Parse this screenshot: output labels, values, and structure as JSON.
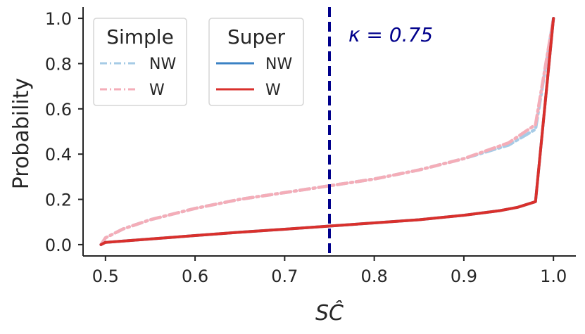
{
  "chart_data": {
    "type": "line",
    "xlabel": "SĈ",
    "ylabel": "Probability",
    "xlim": [
      0.475,
      1.025
    ],
    "ylim": [
      -0.05,
      1.05
    ],
    "x_ticks": [
      "0.5",
      "0.6",
      "0.7",
      "0.8",
      "0.9",
      "1.0"
    ],
    "y_ticks": [
      "0.0",
      "0.2",
      "0.4",
      "0.6",
      "0.8",
      "1.0"
    ],
    "grid": false,
    "threshold": {
      "x": 0.75,
      "label": "κ = 0.75",
      "color": "#00008b"
    },
    "legends": [
      {
        "title": "Simple",
        "entries": [
          {
            "label": "NW",
            "color": "#a6cbe6",
            "style": "dashdot"
          },
          {
            "label": "W",
            "color": "#f4adb8",
            "style": "dashdot"
          }
        ]
      },
      {
        "title": "Super",
        "entries": [
          {
            "label": "NW",
            "color": "#3b82c4",
            "style": "solid"
          },
          {
            "label": "W",
            "color": "#d9302c",
            "style": "solid"
          }
        ]
      }
    ],
    "legend_placement": "upper-left",
    "series": [
      {
        "group": "Simple",
        "name": "NW",
        "color": "#a6cbe6",
        "style": "dashdot",
        "x": [
          0.495,
          0.5,
          0.52,
          0.55,
          0.6,
          0.65,
          0.7,
          0.75,
          0.8,
          0.85,
          0.9,
          0.95,
          0.98,
          1.0
        ],
        "y": [
          0.0,
          0.03,
          0.07,
          0.11,
          0.16,
          0.2,
          0.23,
          0.26,
          0.29,
          0.33,
          0.38,
          0.44,
          0.51,
          1.0
        ]
      },
      {
        "group": "Simple",
        "name": "W",
        "color": "#f4adb8",
        "style": "dashdot",
        "x": [
          0.495,
          0.5,
          0.52,
          0.55,
          0.6,
          0.65,
          0.7,
          0.75,
          0.8,
          0.85,
          0.9,
          0.95,
          0.98,
          1.0
        ],
        "y": [
          0.0,
          0.03,
          0.07,
          0.11,
          0.16,
          0.2,
          0.23,
          0.26,
          0.29,
          0.33,
          0.38,
          0.45,
          0.53,
          1.0
        ]
      },
      {
        "group": "Super",
        "name": "NW",
        "color": "#3b82c4",
        "style": "solid",
        "x": [
          0.495,
          0.5,
          0.55,
          0.6,
          0.65,
          0.7,
          0.75,
          0.8,
          0.85,
          0.9,
          0.94,
          0.96,
          0.98,
          1.0
        ],
        "y": [
          0.0,
          0.01,
          0.025,
          0.04,
          0.055,
          0.068,
          0.082,
          0.096,
          0.11,
          0.13,
          0.15,
          0.165,
          0.19,
          1.0
        ]
      },
      {
        "group": "Super",
        "name": "W",
        "color": "#d9302c",
        "style": "solid",
        "x": [
          0.495,
          0.5,
          0.55,
          0.6,
          0.65,
          0.7,
          0.75,
          0.8,
          0.85,
          0.9,
          0.94,
          0.96,
          0.98,
          1.0
        ],
        "y": [
          0.0,
          0.01,
          0.025,
          0.04,
          0.055,
          0.068,
          0.082,
          0.096,
          0.11,
          0.13,
          0.15,
          0.165,
          0.19,
          1.0
        ]
      }
    ]
  }
}
